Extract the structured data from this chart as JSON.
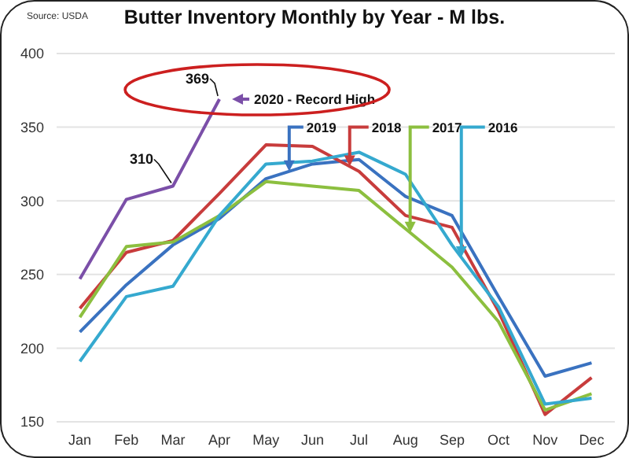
{
  "chart_data": {
    "type": "line",
    "title": "Butter Inventory Monthly by Year - M lbs.",
    "categories": [
      "Jan",
      "Feb",
      "Mar",
      "Apr",
      "May",
      "Jun",
      "Jul",
      "Aug",
      "Sep",
      "Oct",
      "Nov",
      "Dec"
    ],
    "series": [
      {
        "name": "2020 - Record High",
        "color": "#7b4fa8",
        "values": [
          247,
          301,
          310,
          369,
          null,
          null,
          null,
          null,
          null,
          null,
          null,
          null
        ]
      },
      {
        "name": "2019",
        "color": "#3a72c0",
        "values": [
          211,
          243,
          270,
          288,
          315,
          325,
          328,
          303,
          290,
          235,
          181,
          190
        ]
      },
      {
        "name": "2018",
        "color": "#c83c3c",
        "values": [
          227,
          265,
          273,
          305,
          338,
          337,
          320,
          290,
          282,
          225,
          155,
          180
        ]
      },
      {
        "name": "2017",
        "color": "#8cbf3f",
        "values": [
          221,
          269,
          272,
          290,
          313,
          310,
          307,
          281,
          255,
          218,
          158,
          169
        ]
      },
      {
        "name": "2016",
        "color": "#35a9cf",
        "values": [
          191,
          235,
          242,
          290,
          325,
          327,
          333,
          318,
          270,
          228,
          162,
          166
        ]
      }
    ],
    "ylim": [
      150,
      400
    ],
    "yticks": [
      150,
      200,
      250,
      300,
      350,
      400
    ],
    "grid": "y",
    "legend": "top",
    "marker": "none",
    "line_style": "solid",
    "annotations": [
      "Source: USDA",
      {
        "text": "369",
        "x": "Apr",
        "y": 369
      },
      {
        "text": "310",
        "x": "Mar",
        "y": 310
      }
    ]
  }
}
